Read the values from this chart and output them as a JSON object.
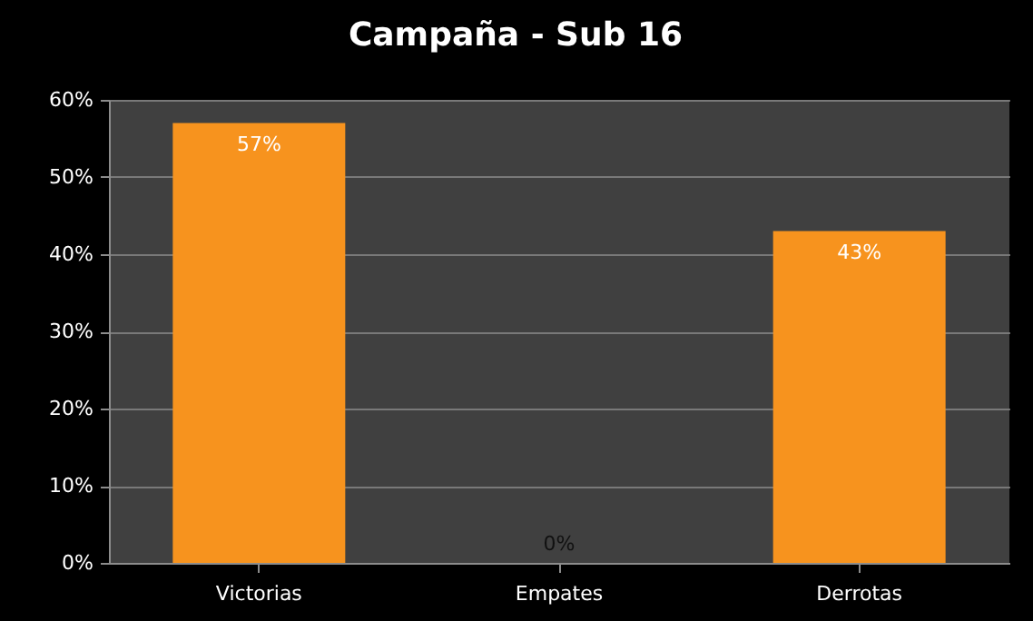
{
  "chart_data": {
    "type": "bar",
    "title": "Campaña - Sub 16",
    "categories": [
      "Victorias",
      "Empates",
      "Derrotas"
    ],
    "values": [
      57,
      0,
      43
    ],
    "color": "#f7931e",
    "value_labels": [
      "57%",
      "0%",
      "43%"
    ],
    "ylim": [
      0,
      60
    ],
    "yticks": [
      {
        "value": 0,
        "label": "0%"
      },
      {
        "value": 10,
        "label": "10%"
      },
      {
        "value": 20,
        "label": "20%"
      },
      {
        "value": 30,
        "label": "30%"
      },
      {
        "value": 40,
        "label": "40%"
      },
      {
        "value": 50,
        "label": "50%"
      },
      {
        "value": 60,
        "label": "60%"
      }
    ],
    "grid": true
  }
}
